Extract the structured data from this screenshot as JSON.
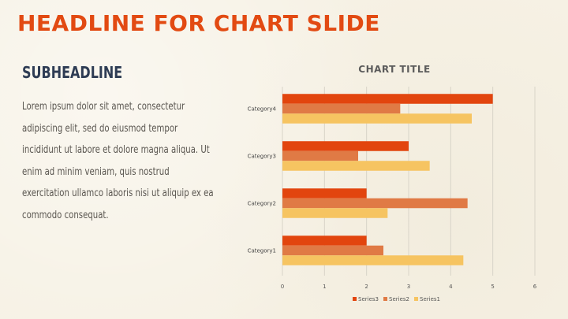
{
  "slide": {
    "headline": "HEADLINE FOR CHART SLIDE",
    "subheadline": "SUBHEADLINE",
    "body": "Lorem ipsum dolor sit amet, consectetur adipiscing elit, sed do eiusmod tempor incididunt ut labore et dolore magna aliqua. Ut enim ad minim veniam, quis nostrud exercitation ullamco laboris nisi ut aliquip ex ea commodo consequat."
  },
  "colors": {
    "headline": "#e24a12",
    "subheadline": "#2e3c54",
    "series3": "#e2450e",
    "series2": "#e07a45",
    "series1": "#f6c461"
  },
  "chart_data": {
    "type": "bar",
    "orientation": "horizontal",
    "title": "CHART TITLE",
    "categories": [
      "Category1",
      "Category2",
      "Category3",
      "Category4"
    ],
    "series": [
      {
        "name": "Series3",
        "values": [
          2,
          2,
          3,
          5
        ]
      },
      {
        "name": "Series2",
        "values": [
          2.4,
          4.4,
          1.8,
          2.8
        ]
      },
      {
        "name": "Series1",
        "values": [
          4.3,
          2.5,
          3.5,
          4.5
        ]
      }
    ],
    "xlim": [
      0,
      6
    ],
    "xticks": [
      "0",
      "1",
      "2",
      "3",
      "4",
      "5",
      "6"
    ],
    "grid": true,
    "legend": "bottom"
  }
}
